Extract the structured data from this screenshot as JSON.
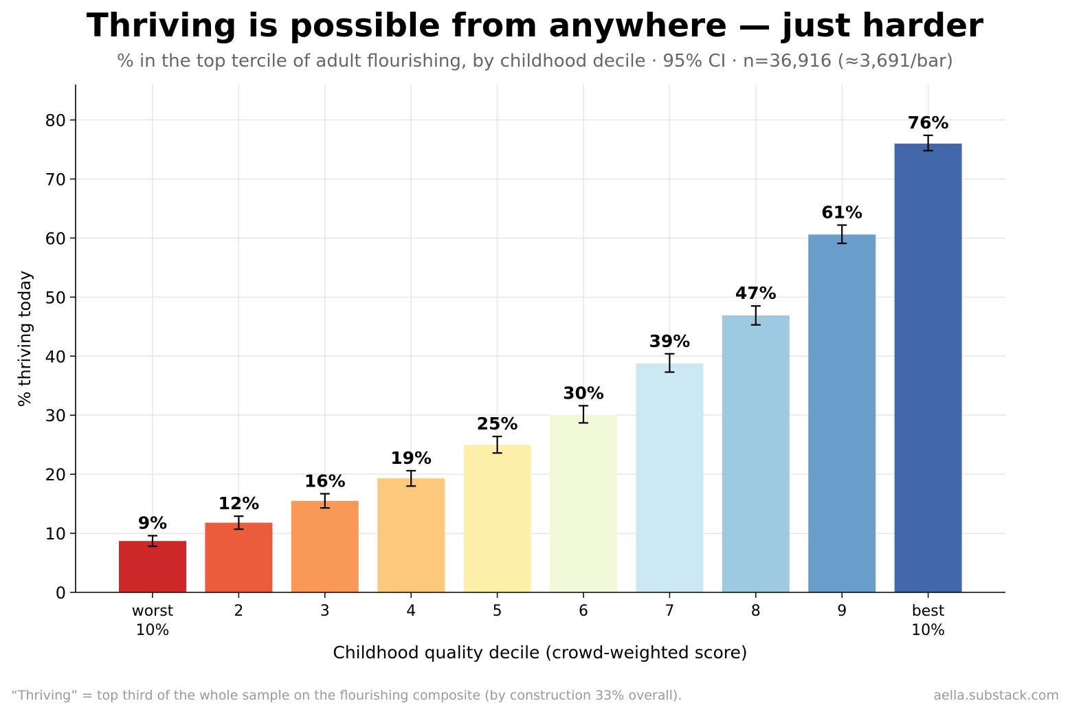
{
  "title": "Thriving is possible from anywhere — just harder",
  "subtitle": "% in the top tercile of adult flourishing, by childhood decile · 95% CI · n=36,916 (≈3,691/bar)",
  "footnote": "“Thriving” = top third of the whole sample on the flourishing composite (by construction 33% overall).",
  "source": "aella.substack.com",
  "chart_data": {
    "type": "bar",
    "title": "Thriving is possible from anywhere — just harder",
    "xlabel": "Childhood quality decile (crowd-weighted score)",
    "ylabel": "% thriving today",
    "ylim": [
      0,
      86
    ],
    "yticks": [
      "0",
      "10",
      "20",
      "30",
      "40",
      "50",
      "60",
      "70",
      "80"
    ],
    "grid": true,
    "categories": [
      [
        "worst",
        "10%"
      ],
      [
        "2"
      ],
      [
        "3"
      ],
      [
        "4"
      ],
      [
        "5"
      ],
      [
        "6"
      ],
      [
        "7"
      ],
      [
        "8"
      ],
      [
        "9"
      ],
      [
        "best",
        "10%"
      ]
    ],
    "values": [
      8.7,
      11.8,
      15.5,
      19.3,
      25.0,
      30.1,
      38.8,
      46.9,
      60.6,
      76.0
    ],
    "ci_low": [
      7.8,
      10.7,
      14.3,
      18.0,
      23.6,
      28.7,
      37.3,
      45.3,
      59.1,
      74.8
    ],
    "ci_high": [
      9.6,
      12.9,
      16.7,
      20.6,
      26.4,
      31.6,
      40.4,
      48.5,
      62.2,
      77.4
    ],
    "data_labels": [
      "9%",
      "12%",
      "16%",
      "19%",
      "25%",
      "30%",
      "39%",
      "47%",
      "61%",
      "76%"
    ],
    "colors": [
      "#cc2828",
      "#eb5c3c",
      "#f99958",
      "#fdc97d",
      "#feefa8",
      "#f1f9d8",
      "#cce8f2",
      "#9dcae0",
      "#689ec9",
      "#4268ab"
    ]
  }
}
